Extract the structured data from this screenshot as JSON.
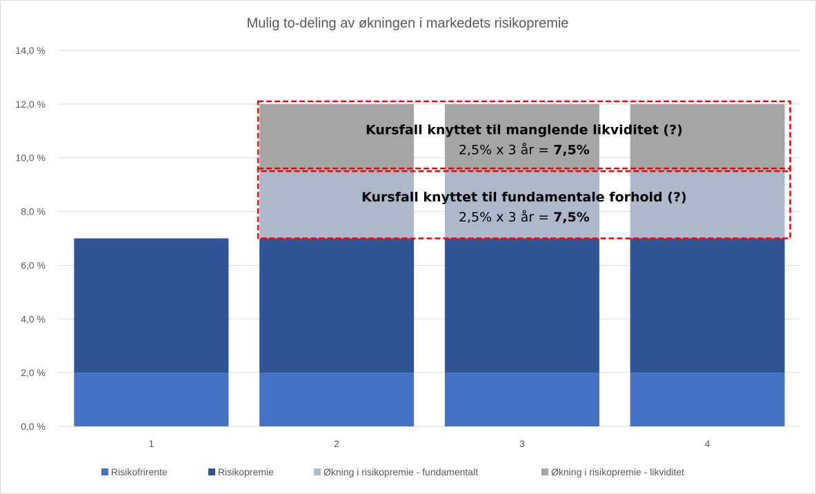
{
  "chart_data": {
    "type": "bar",
    "stacked": true,
    "title": "Mulig to-deling av økningen i markedets risikopremie",
    "xlabel": "",
    "ylabel": "",
    "categories": [
      "1",
      "2",
      "3",
      "4"
    ],
    "ylim": [
      0,
      14
    ],
    "yticks": [
      0,
      2,
      4,
      6,
      8,
      10,
      12,
      14
    ],
    "ytick_labels": [
      "0,0 %",
      "2,0 %",
      "4,0 %",
      "6,0 %",
      "8,0 %",
      "10,0 %",
      "12,0 %",
      "14,0 %"
    ],
    "grid": true,
    "legend_position": "bottom",
    "series": [
      {
        "name": "Risikofrirente",
        "color": "#4472C4",
        "values": [
          2.0,
          2.0,
          2.0,
          2.0
        ]
      },
      {
        "name": "Risikopremie",
        "color": "#2F5597",
        "values": [
          5.0,
          5.0,
          5.0,
          5.0
        ]
      },
      {
        "name": "Økning i risikopremie - fundamentalt",
        "color": "#ADB9CA",
        "values": [
          0,
          2.5,
          2.5,
          2.5
        ]
      },
      {
        "name": "Økning i risikopremie - likviditet",
        "color": "#A5A5A5",
        "values": [
          0,
          2.5,
          2.5,
          2.5
        ]
      }
    ],
    "annotations": [
      {
        "line1": "Kursfall knyttet til manglende likviditet (?)",
        "line2_prefix": "2,5% x 3 år = ",
        "line2_value": "7,5%",
        "range": [
          9.5,
          12.0
        ]
      },
      {
        "line1": "Kursfall knyttet til fundamentale forhold (?)",
        "line2_prefix": "2,5% x 3 år = ",
        "line2_value": "7,5%",
        "range": [
          7.0,
          9.5
        ]
      }
    ],
    "annotation_border_color": "#FF0000"
  }
}
